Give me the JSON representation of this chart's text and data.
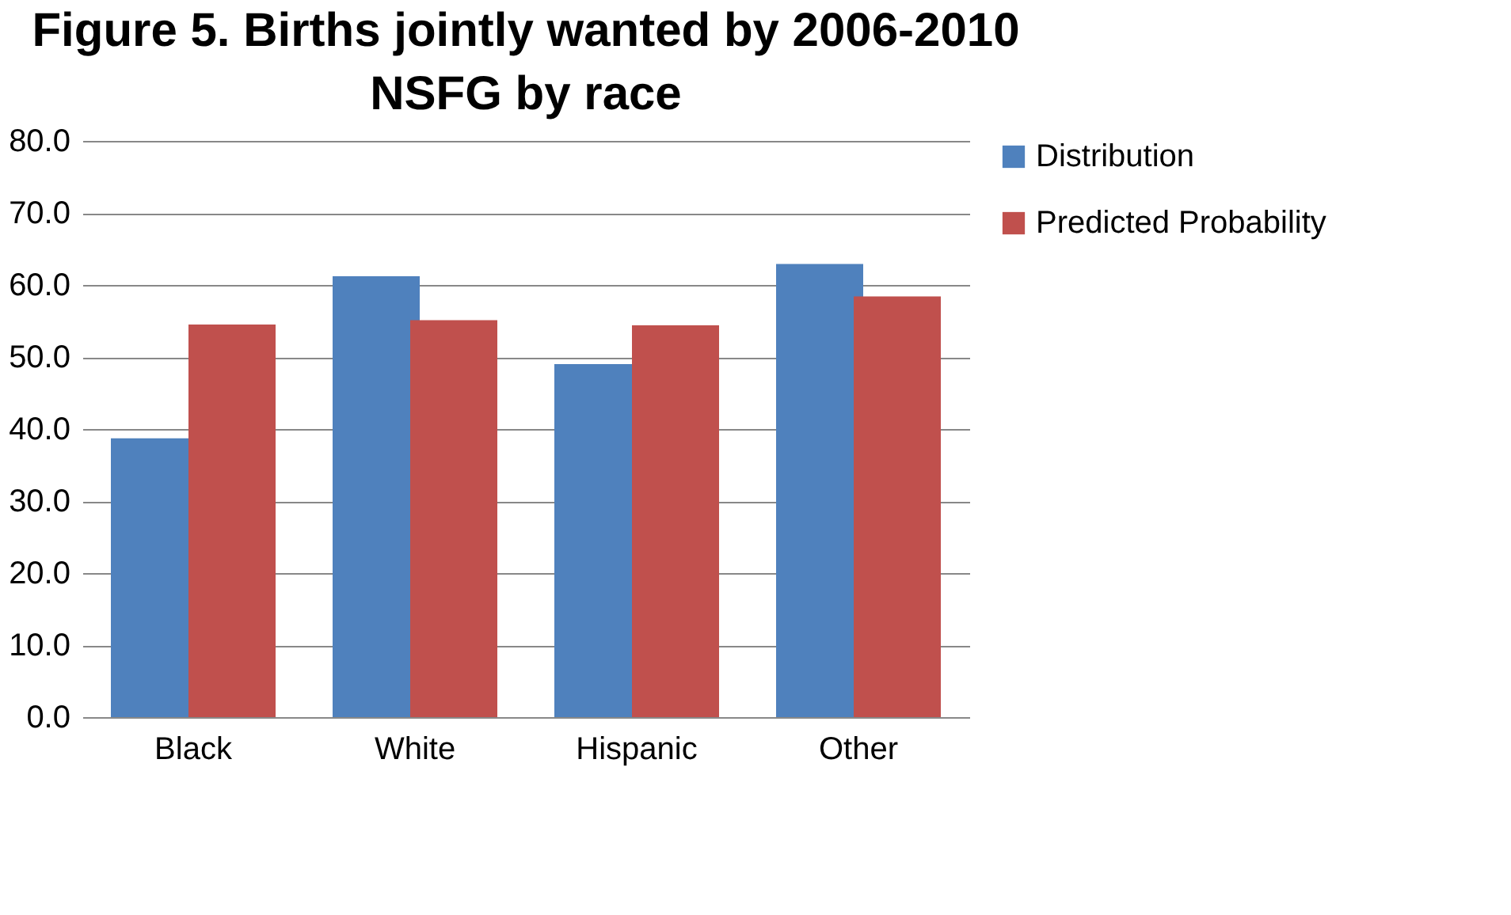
{
  "chart_data": {
    "type": "bar",
    "title": "Figure 5. Births jointly wanted by 2006-2010 NSFG by race",
    "categories": [
      "Black",
      "White",
      "Hispanic",
      "Other"
    ],
    "series": [
      {
        "name": "Distribution",
        "color": "#4f81bd",
        "values": [
          38.7,
          61.2,
          49.0,
          62.9
        ]
      },
      {
        "name": "Predicted Probability",
        "color": "#c0504d",
        "values": [
          54.5,
          55.1,
          54.4,
          58.4
        ]
      }
    ],
    "ylim": [
      0,
      80
    ],
    "yticks": [
      {
        "value": 0,
        "label": "0.0"
      },
      {
        "value": 10,
        "label": "10.0"
      },
      {
        "value": 20,
        "label": "20.0"
      },
      {
        "value": 30,
        "label": "30.0"
      },
      {
        "value": 40,
        "label": "40.0"
      },
      {
        "value": 50,
        "label": "50.0"
      },
      {
        "value": 60,
        "label": "60.0"
      },
      {
        "value": 70,
        "label": "70.0"
      },
      {
        "value": 80,
        "label": "80.0"
      }
    ],
    "grid": "y",
    "legend": "right"
  }
}
